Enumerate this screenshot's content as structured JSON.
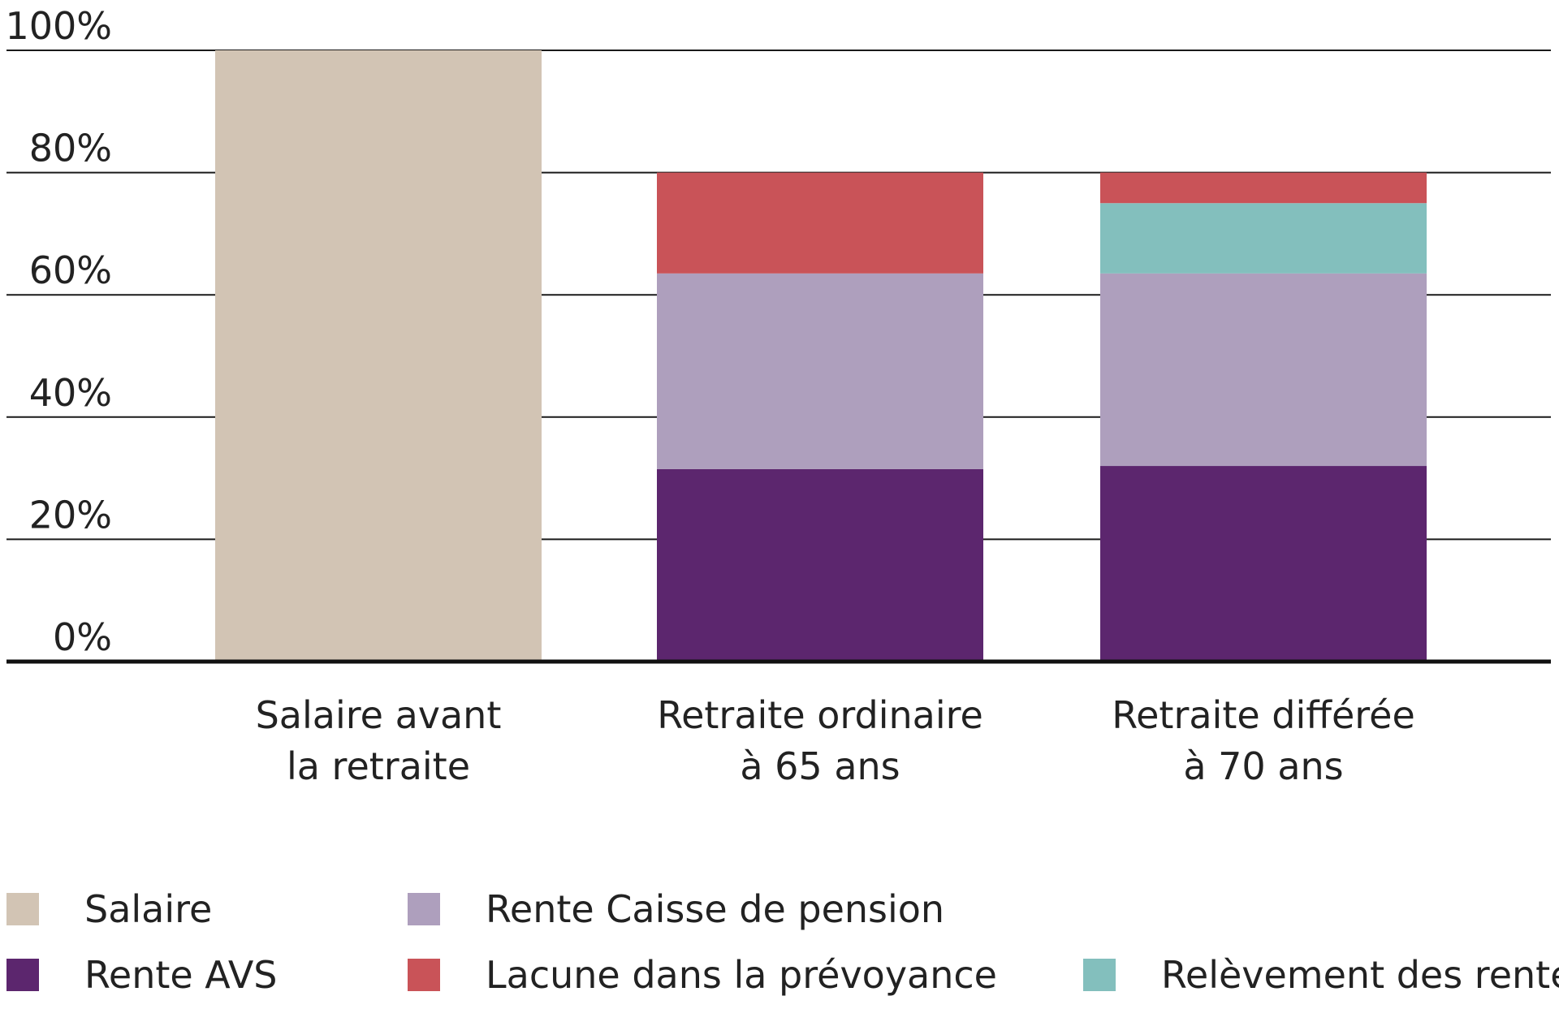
{
  "chart_data": {
    "type": "bar",
    "stacked": true,
    "categories": [
      [
        "Salaire avant",
        "la retraite"
      ],
      [
        "Retraite ordinaire",
        "à 65 ans"
      ],
      [
        "Retraite différée",
        "à 70 ans"
      ]
    ],
    "yticks": [
      "0%",
      "20%",
      "40%",
      "60%",
      "80%",
      "100%"
    ],
    "ylim": [
      0,
      100
    ],
    "grid": true,
    "legend_position": "bottom",
    "series": [
      {
        "name": "Salaire",
        "color": "#d2c4b4",
        "values": [
          100,
          0,
          0
        ]
      },
      {
        "name": "Rente AVS",
        "color": "#5c266e",
        "values": [
          0,
          31.5,
          32
        ]
      },
      {
        "name": "Rente Caisse de pension",
        "color": "#ae9fbd",
        "values": [
          0,
          32,
          31.5
        ]
      },
      {
        "name": "Relèvement des rentes",
        "color": "#83bfbd",
        "values": [
          0,
          0,
          11.5
        ]
      },
      {
        "name": "Lacune dans la prévoyance",
        "color": "#c95358",
        "values": [
          0,
          16.5,
          5
        ]
      }
    ],
    "legend": [
      {
        "name": "Salaire",
        "color": "#d2c4b4"
      },
      {
        "name": "Rente Caisse de pension",
        "color": "#ae9fbd"
      },
      {
        "name": "Rente AVS",
        "color": "#5c266e"
      },
      {
        "name": "Lacune dans la prévoyance",
        "color": "#c95358"
      },
      {
        "name": "Relèvement des rentes",
        "color": "#83bfbd"
      }
    ]
  }
}
